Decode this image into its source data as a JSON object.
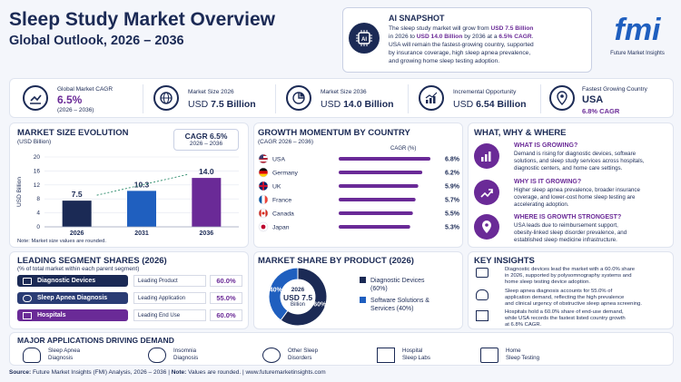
{
  "header": {
    "title": "Sleep Study Market Overview",
    "subtitle": "Global Outlook, 2026 – 2036"
  },
  "snapshot": {
    "title": "AI SNAPSHOT",
    "line1_pre": "The sleep study market will grow from ",
    "line1_a": "USD 7.5 Billion",
    "line2_pre": "in 2026 to ",
    "line2_a": "USD 14.0 Billion",
    "line2_mid": " by 2036 at a ",
    "line2_b": "6.5% CAGR",
    "line2_end": ".",
    "line3": "USA will remain the fastest-growing country, supported",
    "line4": "by insurance coverage, high sleep apnea prevalence,",
    "line5": "and growing home sleep testing adoption."
  },
  "logo": {
    "text": "fmi",
    "caption": "Future Market Insights"
  },
  "kpis": [
    {
      "label": "Global Market CAGR",
      "value": "6.5%",
      "note": "(2026 – 2036)",
      "icon": "trend-up-icon"
    },
    {
      "label": "Market Size 2026",
      "value_pre": "USD ",
      "value": "7.5 Billion",
      "icon": "globe-icon"
    },
    {
      "label": "Market Size 2036",
      "value_pre": "USD ",
      "value": "14.0 Billion",
      "icon": "pie-icon"
    },
    {
      "label": "Incremental Opportunity",
      "value_pre": "USD ",
      "value": "6.54 Billion",
      "icon": "bar-up-icon"
    },
    {
      "label": "Fastest Growing Country",
      "value": "USA",
      "note": "6.8% CAGR",
      "icon": "pin-icon"
    }
  ],
  "market_size": {
    "title": "MARKET SIZE EVOLUTION",
    "unit": "(USD Billion)",
    "cagr_label": "CAGR 6.5%",
    "cagr_range": "2026 – 2036",
    "note": "Note: Market size values are rounded."
  },
  "growth": {
    "title": "GROWTH MOMENTUM BY COUNTRY",
    "sub": "(CAGR 2026 – 2036)",
    "col_label": "CAGR (%)"
  },
  "segments": {
    "title": "LEADING SEGMENT SHARES (2026)",
    "sub": "(% of total market within each parent segment)",
    "rows": [
      {
        "name": "Diagnostic Devices",
        "role": "Leading Product",
        "value": "60.0%",
        "color": "#1b2a55"
      },
      {
        "name": "Sleep Apnea Diagnosis",
        "role": "Leading Application",
        "value": "55.0%",
        "color": "#2a3c74"
      },
      {
        "name": "Hospitals",
        "role": "Leading End Use",
        "value": "60.0%",
        "color": "#6a2a97"
      }
    ]
  },
  "share": {
    "title": "MARKET SHARE BY PRODUCT (2026)",
    "center_year": "2026",
    "center_value": "USD 7.5",
    "center_unit": "Billion"
  },
  "www": {
    "title": "WHAT, WHY & WHERE",
    "items": [
      {
        "q": "WHAT IS GROWING?",
        "l1": "Demand is rising for diagnostic devices, software",
        "l2": "solutions, and sleep study services across hospitals,",
        "l3": "diagnostic centers, and home care settings."
      },
      {
        "q": "WHY IS IT GROWING?",
        "l1": "Higher sleep apnea prevalence, broader insurance",
        "l2": "coverage, and lower-cost home sleep testing are",
        "l3": "accelerating adoption."
      },
      {
        "q": "WHERE IS GROWTH STRONGEST?",
        "l1": "USA leads due to reimbursement support,",
        "l2": "obesity-linked sleep disorder prevalence, and",
        "l3": "established sleep medicine infrastructure."
      }
    ]
  },
  "insights": {
    "title": "KEY INSIGHTS",
    "items": [
      {
        "l1": "Diagnostic devices lead the market with a 60.0% share",
        "l2": "in 2026, supported by polysomnography systems and",
        "l3": "home sleep testing device adoption."
      },
      {
        "l1": "Sleep apnea diagnosis accounts for 55.0% of",
        "l2": "application demand, reflecting the high prevalence",
        "l3": "and clinical urgency of obstructive sleep apnea screening."
      },
      {
        "l1": "Hospitals hold a 60.0% share of end-use demand,",
        "l2": "while USA records the fastest listed country growth",
        "l3": "at 6.8% CAGR."
      }
    ]
  },
  "applications": {
    "title": "MAJOR APPLICATIONS DRIVING DEMAND",
    "items": [
      {
        "l1": "Sleep Apnea",
        "l2": "Diagnosis"
      },
      {
        "l1": "Insomnia",
        "l2": "Diagnosis"
      },
      {
        "l1": "Other Sleep",
        "l2": "Disorders"
      },
      {
        "l1": "Hospital",
        "l2": "Sleep Labs"
      },
      {
        "l1": "Home",
        "l2": "Sleep Testing"
      }
    ]
  },
  "footer": {
    "source_label": "Source:",
    "source_text": " Future Market Insights (FMI) Analysis, 2026 – 2036 | ",
    "note_label": "Note:",
    "note_text": " Values are rounded. | www.futuremarketinsights.com"
  },
  "colors": {
    "navy": "#1b2a55",
    "purple": "#6a2a97",
    "blue": "#1f5fbf"
  },
  "chart_data": [
    {
      "type": "bar",
      "categories": [
        "2026",
        "2031",
        "2036"
      ],
      "values": [
        7.5,
        10.3,
        14.0
      ],
      "ylabel": "USD Billion",
      "ylim": [
        0,
        20
      ],
      "yticks": [
        0,
        4,
        8,
        12,
        16,
        20
      ],
      "colors": [
        "#1b2a55",
        "#1f5fbf",
        "#6a2a97"
      ]
    },
    {
      "type": "bar",
      "orientation": "horizontal",
      "categories": [
        "USA",
        "Germany",
        "UK",
        "France",
        "Canada",
        "Japan"
      ],
      "values": [
        6.8,
        6.2,
        5.9,
        5.7,
        5.5,
        5.3
      ],
      "labels": [
        "6.8%",
        "6.2%",
        "5.9%",
        "5.7%",
        "5.5%",
        "5.3%"
      ],
      "xlim": [
        0,
        7
      ]
    },
    {
      "type": "pie",
      "labels": [
        "Diagnostic Devices",
        "Software Solutions & Services"
      ],
      "values": [
        60,
        40
      ],
      "label_lines": [
        [
          "Diagnostic Devices",
          "(60%)"
        ],
        [
          "Software Solutions &",
          "Services (40%)"
        ]
      ],
      "slice_labels": [
        "60%",
        "40%"
      ],
      "colors": [
        "#1b2a55",
        "#1f5fbf"
      ]
    }
  ]
}
